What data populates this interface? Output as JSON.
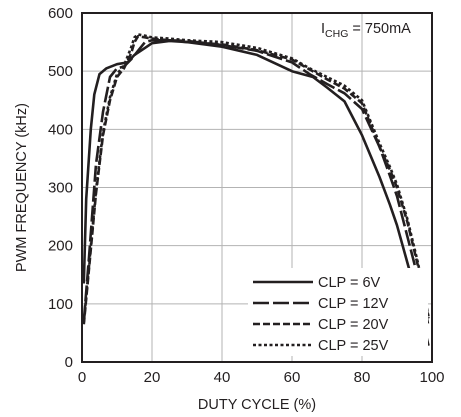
{
  "chart_data": {
    "type": "line",
    "xlabel": "DUTY CYCLE (%)",
    "ylabel": "PWM FREQUENCY (kHz)",
    "xlim": [
      0,
      100
    ],
    "ylim": [
      0,
      600
    ],
    "x_ticks": [
      0,
      20,
      40,
      60,
      80,
      100
    ],
    "x_tick_labels": [
      "0",
      "20",
      "40",
      "60",
      "80",
      "100"
    ],
    "y_ticks": [
      0,
      100,
      200,
      300,
      400,
      500,
      600
    ],
    "y_tick_labels": [
      "0",
      "100",
      "200",
      "300",
      "400",
      "500",
      "600"
    ],
    "grid": true,
    "legend_position": "bottom-right",
    "annotation": {
      "prefix": "I",
      "subscript": "CHG",
      "suffix": " = 750mA"
    },
    "series": [
      {
        "name": "CLP = 6V",
        "style": "solid",
        "x": [
          0.5,
          1.2,
          2.5,
          3.5,
          5,
          7,
          10,
          13,
          15,
          18,
          20,
          25,
          30,
          40,
          50,
          60,
          63,
          66,
          70,
          75,
          80,
          85,
          88,
          90,
          93,
          96,
          99
        ],
        "y": [
          135,
          280,
          400,
          460,
          495,
          505,
          512,
          515,
          528,
          540,
          548,
          552,
          550,
          542,
          528,
          500,
          495,
          490,
          472,
          448,
          390,
          318,
          270,
          235,
          170,
          105,
          28
        ]
      },
      {
        "name": "CLP = 12V",
        "style": "long-dash",
        "x": [
          0.5,
          2,
          4,
          6,
          8,
          10,
          12,
          14,
          16,
          18,
          20,
          25,
          30,
          40,
          50,
          60,
          65,
          70,
          75,
          80,
          85,
          88,
          90,
          93,
          96,
          99
        ],
        "y": [
          70,
          180,
          340,
          430,
          490,
          505,
          508,
          520,
          535,
          550,
          553,
          553,
          552,
          545,
          535,
          515,
          495,
          478,
          462,
          435,
          370,
          320,
          285,
          215,
          145,
          62
        ]
      },
      {
        "name": "CLP = 20V",
        "style": "dash",
        "x": [
          0.5,
          2,
          4,
          6,
          8,
          10,
          12,
          14,
          15,
          16,
          18,
          20,
          25,
          30,
          40,
          50,
          60,
          65,
          70,
          75,
          80,
          85,
          88,
          90,
          93,
          96,
          99
        ],
        "y": [
          65,
          160,
          290,
          390,
          450,
          490,
          505,
          530,
          550,
          560,
          558,
          556,
          553,
          550,
          546,
          536,
          520,
          503,
          486,
          470,
          445,
          370,
          330,
          300,
          240,
          165,
          75
        ]
      },
      {
        "name": "CLP = 25V",
        "style": "dot",
        "x": [
          0.5,
          2,
          4,
          6,
          8,
          10,
          12,
          14,
          15,
          16,
          18,
          20,
          25,
          30,
          40,
          50,
          60,
          65,
          70,
          75,
          80,
          85,
          88,
          90,
          93,
          96,
          99
        ],
        "y": [
          68,
          165,
          295,
          395,
          455,
          495,
          510,
          540,
          558,
          563,
          561,
          558,
          556,
          553,
          550,
          540,
          522,
          505,
          490,
          475,
          450,
          376,
          335,
          305,
          245,
          170,
          78
        ]
      }
    ]
  }
}
